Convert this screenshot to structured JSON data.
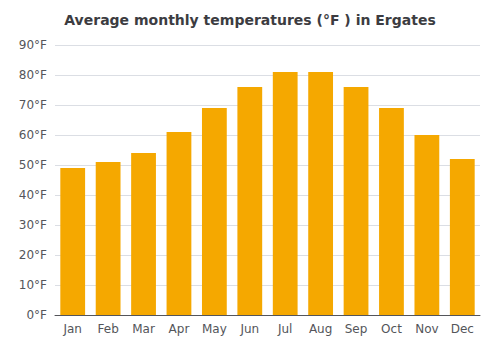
{
  "chart_data": {
    "type": "bar",
    "title": "Average monthly temperatures (°F ) in Ergates",
    "categories": [
      "Jan",
      "Feb",
      "Mar",
      "Apr",
      "May",
      "Jun",
      "Jul",
      "Aug",
      "Sep",
      "Oct",
      "Nov",
      "Dec"
    ],
    "values": [
      49,
      51,
      54,
      61,
      69,
      76,
      81,
      81,
      76,
      69,
      60,
      52
    ],
    "color": "#F5A800",
    "ylim": [
      0,
      90
    ],
    "yticks": [
      {
        "value": 0,
        "label": "0°F"
      },
      {
        "value": 10,
        "label": "10°F"
      },
      {
        "value": 20,
        "label": "20°F"
      },
      {
        "value": 30,
        "label": "30°F"
      },
      {
        "value": 40,
        "label": "40°F"
      },
      {
        "value": 50,
        "label": "50°F"
      },
      {
        "value": 60,
        "label": "60°F"
      },
      {
        "value": 70,
        "label": "70°F"
      },
      {
        "value": 80,
        "label": "80°F"
      },
      {
        "value": 90,
        "label": "90°F"
      }
    ],
    "grid": true
  }
}
